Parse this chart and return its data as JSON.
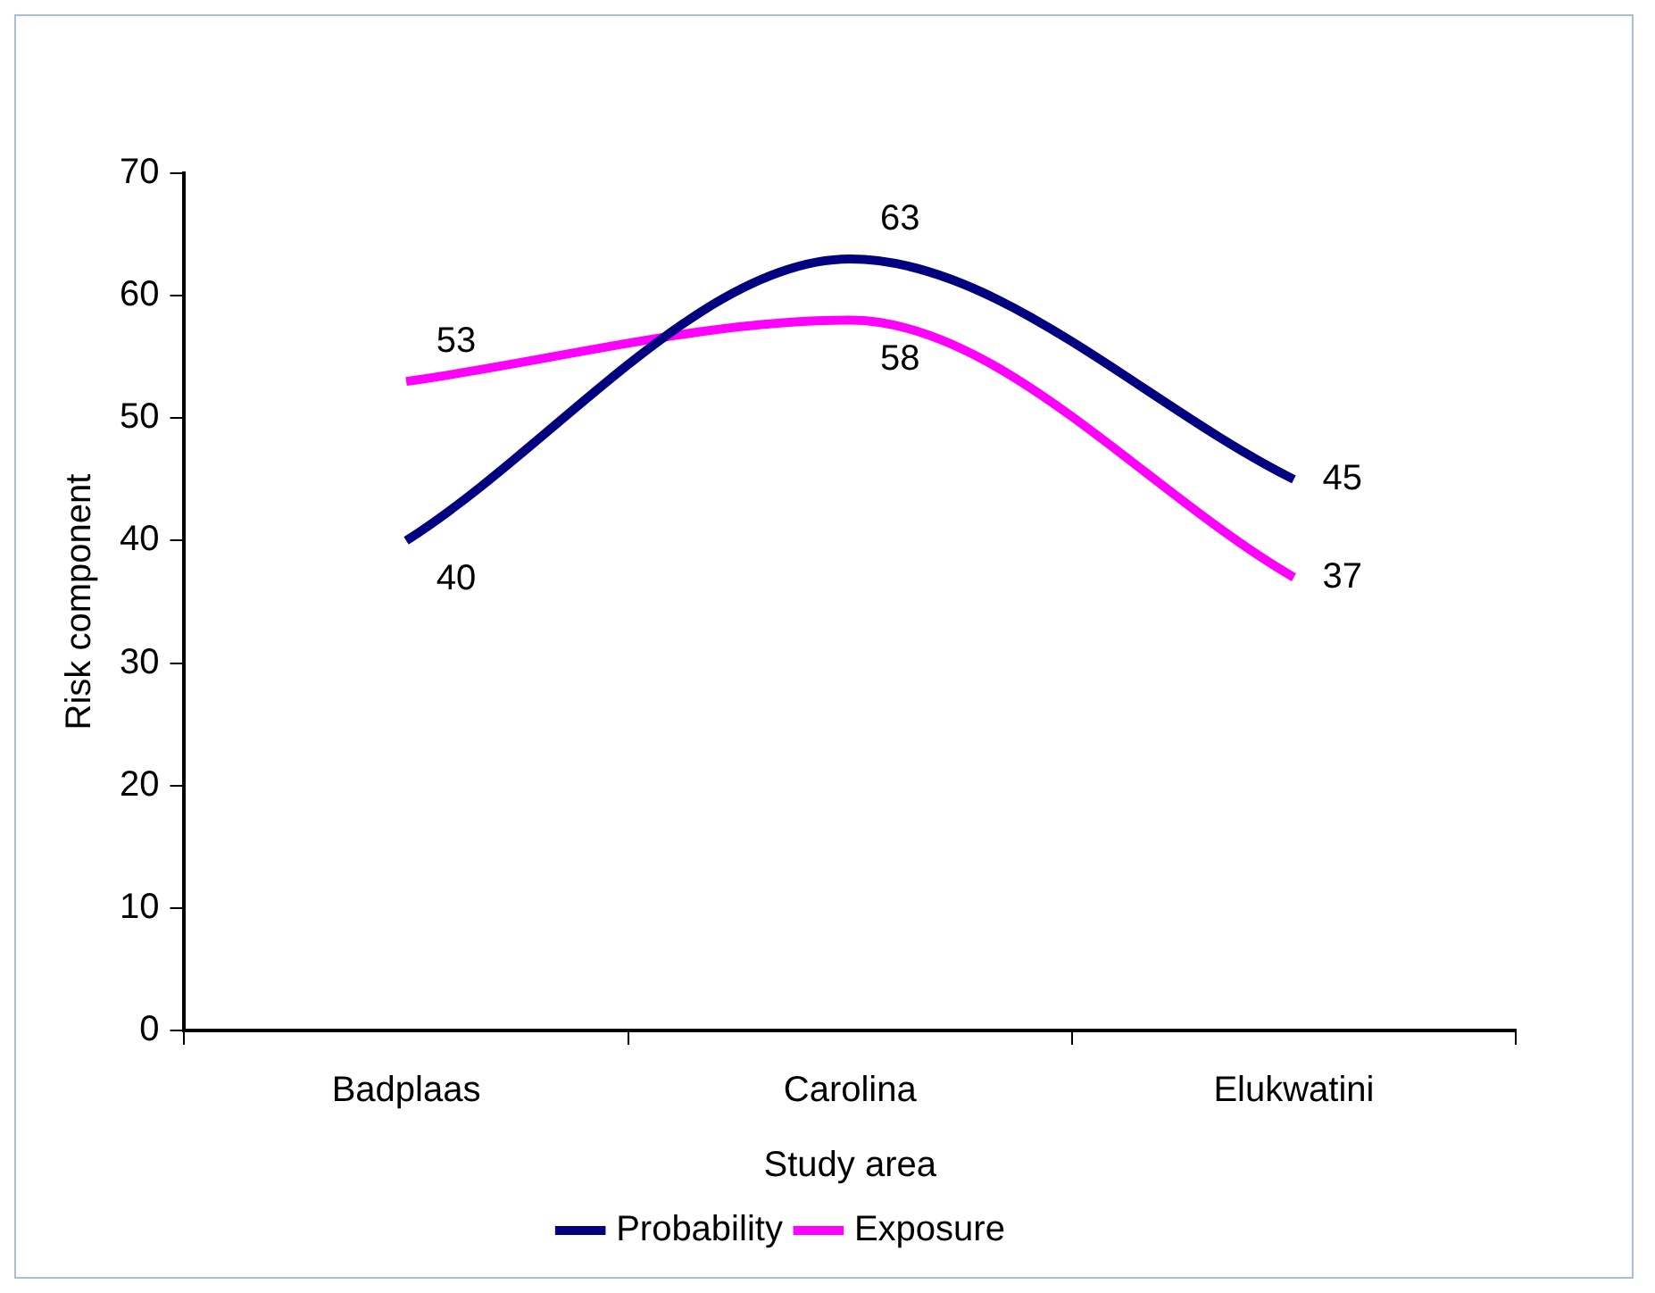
{
  "chart_data": {
    "type": "line",
    "xlabel": "Study area",
    "ylabel": "Risk component",
    "categories": [
      "Badplaas",
      "Carolina",
      "Elukwatini"
    ],
    "series": [
      {
        "name": "Probability",
        "color": "#000080",
        "values": [
          40,
          63,
          45
        ]
      },
      {
        "name": "Exposure",
        "color": "#ff00ff",
        "values": [
          53,
          58,
          37
        ]
      }
    ],
    "ylim": [
      0,
      70
    ],
    "yticks": [
      0,
      10,
      20,
      30,
      40,
      50,
      60,
      70
    ],
    "grid": false,
    "legend": "bottom",
    "marker": "none",
    "line_style": "solid",
    "data_labels": true
  }
}
